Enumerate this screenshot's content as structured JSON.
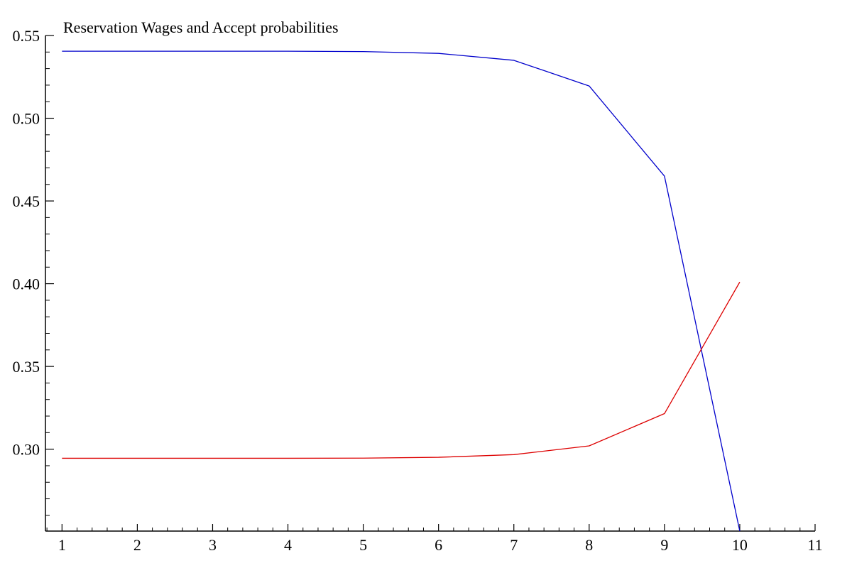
{
  "chart_data": {
    "type": "line",
    "title": "Reservation Wages and Accept probabilities",
    "xlabel": "",
    "ylabel": "",
    "xlim": [
      0.78,
      11
    ],
    "ylim": [
      0.2505,
      0.55
    ],
    "x_ticks": [
      1,
      2,
      3,
      4,
      5,
      6,
      7,
      8,
      9,
      10,
      11
    ],
    "x_tick_labels": [
      "1",
      "2",
      "3",
      "4",
      "5",
      "6",
      "7",
      "8",
      "9",
      "10",
      "11"
    ],
    "y_major_ticks": [
      0.3,
      0.35,
      0.4,
      0.45,
      0.5,
      0.55
    ],
    "y_tick_labels": [
      "0.30",
      "0.35",
      "0.40",
      "0.45",
      "0.50",
      "0.55"
    ],
    "y_minor_step": 0.01,
    "x_minor_step": 0.2,
    "grid": false,
    "legend": "none",
    "x": [
      1,
      2,
      3,
      4,
      5,
      6,
      7,
      8,
      9,
      10
    ],
    "series": [
      {
        "color": "#0000cc",
        "values": [
          0.5405,
          0.5405,
          0.5405,
          0.5405,
          0.5403,
          0.5392,
          0.535,
          0.5195,
          0.465,
          0.2505
        ]
      },
      {
        "color": "#dd0000",
        "values": [
          0.2945,
          0.2945,
          0.2945,
          0.2945,
          0.2946,
          0.2951,
          0.2967,
          0.302,
          0.3215,
          0.401
        ]
      }
    ]
  }
}
